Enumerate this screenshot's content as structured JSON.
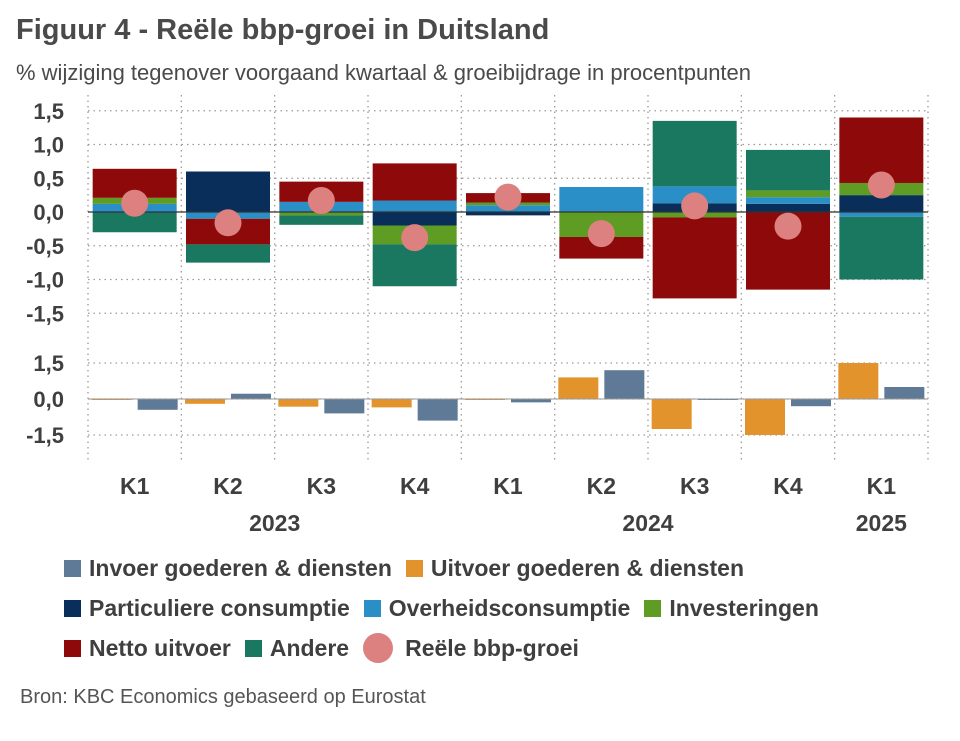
{
  "header": {
    "title": "Figuur 4 - Reële bbp-groei in Duitsland",
    "subtitle": "% wijziging tegenover voorgaand kwartaal & groeibijdrage in procentpunten"
  },
  "source": "Bron: KBC Economics gebaseerd op Eurostat",
  "colors": {
    "invoer": "#5f7a96",
    "uitvoer": "#e3932b",
    "particulier": "#0a2e5a",
    "overheid": "#2a8fc6",
    "investeringen": "#5e9c23",
    "netto": "#8e0909",
    "andere": "#1a7860",
    "groei": "#dd8080"
  },
  "legend": [
    {
      "key": "invoer",
      "label": "Invoer goederen & diensten",
      "shape": "square"
    },
    {
      "key": "uitvoer",
      "label": "Uitvoer goederen & diensten",
      "shape": "square"
    },
    {
      "key": "particulier",
      "label": "Particuliere consumptie",
      "shape": "square"
    },
    {
      "key": "overheid",
      "label": "Overheidsconsumptie",
      "shape": "square"
    },
    {
      "key": "investeringen",
      "label": "Investeringen",
      "shape": "square"
    },
    {
      "key": "netto",
      "label": "Netto uitvoer",
      "shape": "square"
    },
    {
      "key": "andere",
      "label": "Andere",
      "shape": "square"
    },
    {
      "key": "groei",
      "label": "Reële bbp-groei",
      "shape": "circle"
    }
  ],
  "chart_data": [
    {
      "type": "bar",
      "stacked": true,
      "categories": [
        "K1",
        "K2",
        "K3",
        "K4",
        "K1",
        "K2",
        "K3",
        "K4",
        "K1"
      ],
      "years": [
        {
          "label": "2023",
          "start": 0,
          "end": 3
        },
        {
          "label": "2024",
          "start": 4,
          "end": 7
        },
        {
          "label": "2025",
          "start": 8,
          "end": 8
        }
      ],
      "ylim": [
        -1.5,
        1.5
      ],
      "yticks": [
        1.5,
        1.0,
        0.5,
        0.0,
        -0.5,
        -1.0,
        -1.5
      ],
      "ytick_labels": [
        "1,5",
        "1,0",
        "0,5",
        "0,0",
        "-0,5",
        "-1,0",
        "-1,5"
      ],
      "series": [
        {
          "key": "particulier",
          "name": "Particuliere consumptie",
          "values": [
            0.0,
            0.6,
            0.0,
            -0.2,
            -0.05,
            0.0,
            0.13,
            0.12,
            0.25
          ]
        },
        {
          "key": "overheid",
          "name": "Overheidsconsumptie",
          "values": [
            0.12,
            -0.1,
            0.15,
            0.17,
            0.1,
            0.37,
            0.25,
            0.1,
            -0.07
          ]
        },
        {
          "key": "investeringen",
          "name": "Investeringen",
          "values": [
            0.09,
            0.0,
            -0.05,
            -0.28,
            0.04,
            -0.37,
            -0.08,
            0.1,
            0.18
          ]
        },
        {
          "key": "netto",
          "name": "Netto uitvoer",
          "values": [
            0.43,
            -0.38,
            0.3,
            0.55,
            0.14,
            -0.32,
            -1.2,
            -1.15,
            0.97
          ]
        },
        {
          "key": "andere",
          "name": "Andere",
          "values": [
            -0.3,
            -0.27,
            -0.14,
            -0.62,
            0.0,
            0.0,
            0.97,
            0.6,
            -0.93
          ]
        }
      ],
      "line_series": {
        "key": "groei",
        "name": "Reële bbp-groei",
        "values": [
          0.13,
          -0.16,
          0.17,
          -0.38,
          0.22,
          -0.32,
          0.09,
          -0.21,
          0.4
        ]
      }
    },
    {
      "type": "bar",
      "categories": [
        "K1",
        "K2",
        "K3",
        "K4",
        "K1",
        "K2",
        "K3",
        "K4",
        "K1"
      ],
      "ylim": [
        -1.5,
        1.5
      ],
      "yticks": [
        1.5,
        0.0,
        -1.5
      ],
      "ytick_labels": [
        "1,5",
        "0,0",
        "-1,5"
      ],
      "series": [
        {
          "key": "uitvoer",
          "name": "Uitvoer goederen & diensten",
          "values": [
            -0.02,
            -0.2,
            -0.32,
            -0.35,
            -0.02,
            0.9,
            -1.25,
            -1.5,
            1.5
          ]
        },
        {
          "key": "invoer",
          "name": "Invoer goederen & diensten",
          "values": [
            -0.45,
            0.22,
            -0.6,
            -0.9,
            -0.14,
            1.2,
            -0.03,
            -0.3,
            0.5
          ]
        }
      ]
    }
  ]
}
